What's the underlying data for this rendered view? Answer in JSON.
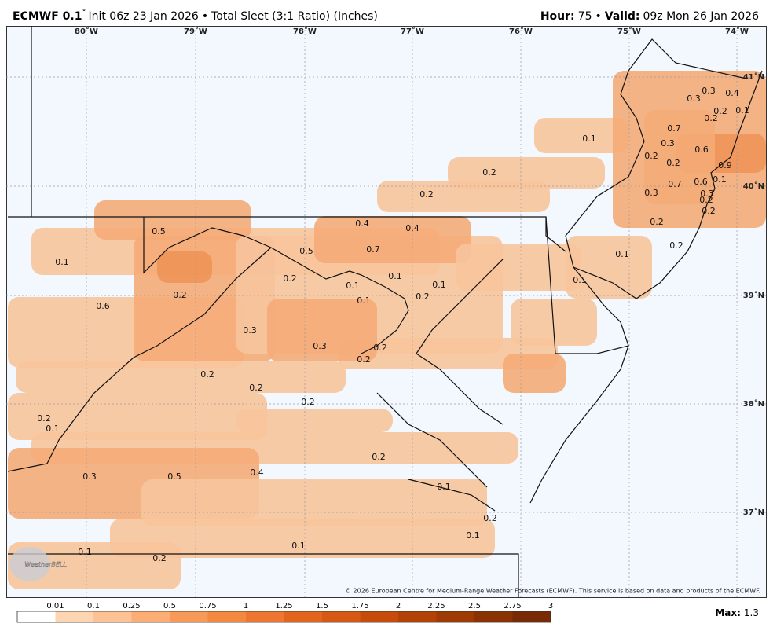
{
  "header": {
    "model": "ECMWF 0.1",
    "model_suffix": "˚",
    "init": "Init 06z 23 Jan 2026",
    "bullet": "•",
    "product": "Total Sleet (3:1 Ratio) (Inches)",
    "hour_label": "Hour:",
    "hour": "75",
    "valid_label": "Valid:",
    "valid": "09z Mon 26 Jan 2026"
  },
  "map": {
    "lon_labels": [
      "80˚W",
      "79˚W",
      "78˚W",
      "77˚W",
      "76˚W",
      "75˚W",
      "74˚W"
    ],
    "lat_labels": [
      "41˚N",
      "40˚N",
      "39˚N",
      "38˚N",
      "37˚N"
    ],
    "point_labels": [
      "0.5",
      "0.1",
      "0.6",
      "0.2",
      "0.2",
      "0.5",
      "0.4",
      "0.4",
      "0.7",
      "0.1",
      "0.1",
      "0.1",
      "0.1",
      "0.2",
      "0.3",
      "0.3",
      "0.2",
      "0.2",
      "0.2",
      "0.2",
      "0.2",
      "0.1",
      "0.2",
      "0.3",
      "0.5",
      "0.4",
      "0.1",
      "0.2",
      "0.1",
      "0.1",
      "0.1",
      "0.2",
      "0.2",
      "0.2",
      "0.1",
      "0.1",
      "0.1",
      "0.2",
      "0.2",
      "0.2",
      "0.3",
      "0.7",
      "0.2",
      "0.6",
      "0.9",
      "0.7",
      "0.6",
      "0.3",
      "0.3",
      "0.2",
      "0.2",
      "0.1",
      "0.3",
      "0.3",
      "0.4",
      "0.2",
      "0.2",
      "0.1",
      "0.2"
    ],
    "copyright": "© 2026 European Centre for Medium-Range Weather Forecasts (ECMWF). This service is based on data and products of the ECMWF.",
    "logo": "WeatherBELL"
  },
  "colorbar": {
    "ticks": [
      0.01,
      0.1,
      0.25,
      0.5,
      0.75,
      1,
      1.25,
      1.5,
      1.75,
      2,
      2.25,
      2.5,
      2.75,
      3
    ],
    "colors": [
      "#ffffff",
      "#fdd5b0",
      "#fcc293",
      "#fbad74",
      "#f89a57",
      "#f38840",
      "#ec7632",
      "#e2651f",
      "#d55914",
      "#c64c0b",
      "#b24307",
      "#9e3a04",
      "#8a3204",
      "#772a04"
    ],
    "max_label": "Max:",
    "max": 1.3
  }
}
